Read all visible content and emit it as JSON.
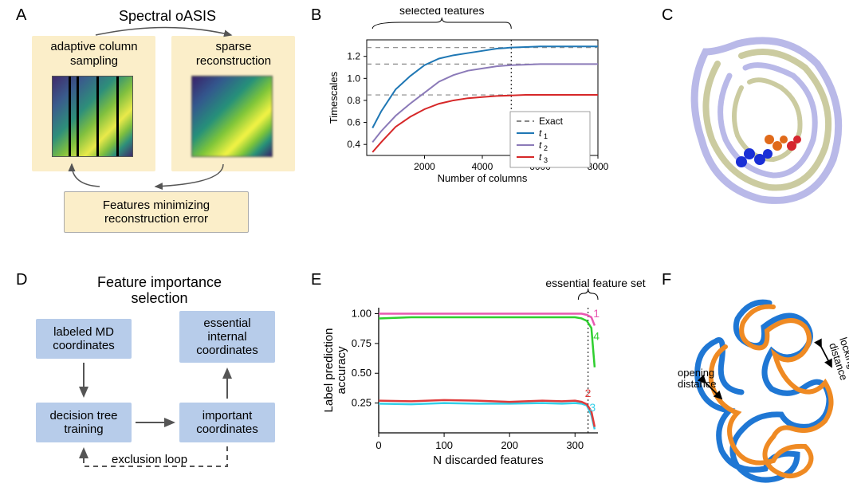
{
  "labels": {
    "A": "A",
    "B": "B",
    "C": "C",
    "D": "D",
    "E": "E",
    "F": "F"
  },
  "panelA": {
    "title": "Spectral oASIS",
    "box1_l1": "adaptive column",
    "box1_l2": "sampling",
    "box2_l1": "sparse",
    "box2_l2": "reconstruction",
    "bottom_l1": "Features minimizing",
    "bottom_l2": "reconstruction error",
    "bg": "#fbeec9"
  },
  "panelB": {
    "title": "selected features",
    "xlabel": "Number of columns",
    "ylabel": "Timescales",
    "legend_exact": "Exact",
    "legend_t1": "t",
    "legend_t2": "t",
    "legend_t3": "t",
    "sub1": "1",
    "sub2": "2",
    "sub3": "3",
    "xtick1": "2000",
    "xtick2": "4000",
    "xtick3": "6000",
    "xtick4": "8000",
    "ytick1": "0.4",
    "ytick2": "0.6",
    "ytick3": "0.8",
    "ytick4": "1.0",
    "ytick5": "1.2",
    "style": {
      "t1_color": "#1f77b4",
      "t2_color": "#8b7ab8",
      "t3_color": "#d62728",
      "exact_color": "#888888",
      "axis_color": "#000000",
      "linewidth": 2,
      "xlim": [
        0,
        8000
      ],
      "ylim": [
        0.3,
        1.35
      ],
      "vline_x": 5000,
      "exact_y": [
        1.28,
        1.13,
        0.85
      ]
    },
    "t1": {
      "x": [
        200,
        500,
        1000,
        1500,
        2000,
        2500,
        3000,
        3500,
        4000,
        4500,
        5000,
        5500,
        6000,
        7000,
        8000
      ],
      "y": [
        0.55,
        0.7,
        0.9,
        1.02,
        1.12,
        1.18,
        1.21,
        1.23,
        1.25,
        1.27,
        1.28,
        1.285,
        1.29,
        1.29,
        1.29
      ]
    },
    "t2": {
      "x": [
        200,
        500,
        1000,
        1500,
        2000,
        2500,
        3000,
        3500,
        4000,
        4500,
        5000,
        5500,
        6000,
        7000,
        8000
      ],
      "y": [
        0.42,
        0.52,
        0.66,
        0.77,
        0.87,
        0.97,
        1.03,
        1.07,
        1.09,
        1.11,
        1.12,
        1.125,
        1.13,
        1.13,
        1.13
      ]
    },
    "t3": {
      "x": [
        200,
        500,
        1000,
        1500,
        2000,
        2500,
        3000,
        3500,
        4000,
        4500,
        5000,
        5500,
        6000,
        7000,
        8000
      ],
      "y": [
        0.33,
        0.42,
        0.56,
        0.65,
        0.72,
        0.77,
        0.8,
        0.82,
        0.83,
        0.84,
        0.845,
        0.85,
        0.85,
        0.85,
        0.85
      ]
    }
  },
  "panelD": {
    "title": "Feature importance selection",
    "box1": "labeled MD coordinates",
    "box1_l1": "labeled MD",
    "box1_l2": "coordinates",
    "box2_l1": "decision tree",
    "box2_l2": "training",
    "box3_l1": "important",
    "box3_l2": "coordinates",
    "box4_l1": "essential",
    "box4_l2": "internal",
    "box4_l3": "coordinates",
    "loop": "exclusion loop",
    "box_bg": "#b7ccea"
  },
  "panelE": {
    "title": "essential feature set",
    "xlabel": "N discarded features",
    "ylabel": "Label prediction accuracy",
    "xtick0": "0",
    "xtick1": "100",
    "xtick2": "200",
    "xtick3": "300",
    "ytick1": "0.25",
    "ytick2": "0.50",
    "ytick3": "0.75",
    "ytick4": "1.00",
    "note1": "1",
    "note2": "2",
    "note3": "3",
    "note4": "4",
    "style": {
      "c1": "#e858b1",
      "c2": "#e03a3a",
      "c3": "#33cfe8",
      "c4": "#2fcf2f",
      "axis_color": "#000000",
      "linewidth": 2.5,
      "xlim": [
        0,
        335
      ],
      "ylim": [
        0,
        1.05
      ],
      "vline_x": 320
    },
    "s1": {
      "x": [
        0,
        50,
        100,
        150,
        200,
        250,
        280,
        300,
        310,
        318,
        325,
        330
      ],
      "y": [
        1.0,
        1.0,
        1.0,
        1.0,
        1.0,
        1.0,
        1.0,
        1.0,
        1.0,
        0.99,
        0.97,
        0.9
      ]
    },
    "s4": {
      "x": [
        0,
        50,
        100,
        150,
        200,
        250,
        280,
        300,
        310,
        318,
        325,
        330
      ],
      "y": [
        0.96,
        0.97,
        0.97,
        0.97,
        0.97,
        0.97,
        0.97,
        0.97,
        0.96,
        0.94,
        0.88,
        0.55
      ]
    },
    "s2": {
      "x": [
        0,
        50,
        100,
        150,
        200,
        250,
        280,
        300,
        310,
        318,
        325,
        330
      ],
      "y": [
        0.27,
        0.265,
        0.275,
        0.27,
        0.26,
        0.27,
        0.265,
        0.27,
        0.26,
        0.24,
        0.18,
        0.05
      ]
    },
    "s3": {
      "x": [
        0,
        50,
        100,
        150,
        200,
        250,
        280,
        300,
        310,
        318,
        325,
        330
      ],
      "y": [
        0.245,
        0.24,
        0.25,
        0.245,
        0.245,
        0.25,
        0.245,
        0.25,
        0.245,
        0.23,
        0.15,
        0.03
      ]
    }
  },
  "panelF": {
    "label1": "opening",
    "label1b": "distance",
    "label2": "locking",
    "label2b": "distance",
    "colors": {
      "conf1": "#1f77d4",
      "conf2": "#ef8a23"
    }
  },
  "panelC": {
    "colors": {
      "body1": "#b9b9e8",
      "body2": "#cbcba0",
      "lig1": "#1a2fd6",
      "lig2": "#e06a1a",
      "lig3": "#d6262f"
    }
  }
}
